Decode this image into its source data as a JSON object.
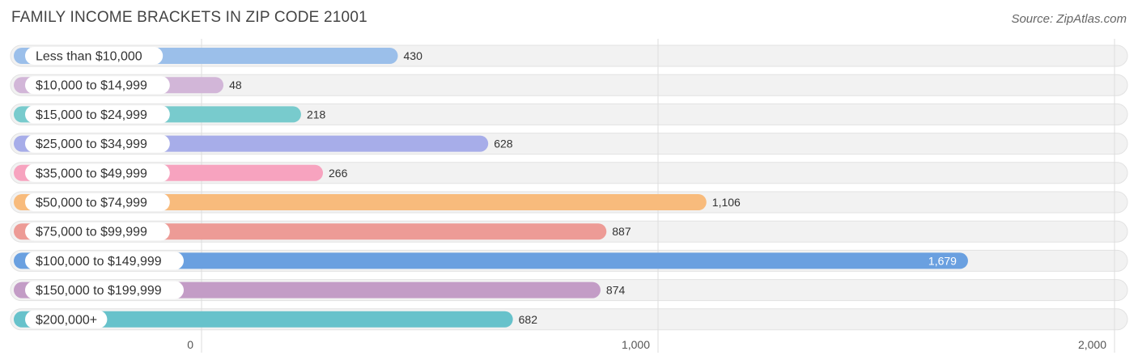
{
  "header": {
    "title": "FAMILY INCOME BRACKETS IN ZIP CODE 21001",
    "source": "Source: ZipAtlas.com"
  },
  "chart_data": {
    "type": "bar",
    "orientation": "horizontal",
    "categories": [
      "Less than $10,000",
      "$10,000 to $14,999",
      "$15,000 to $24,999",
      "$25,000 to $34,999",
      "$35,000 to $49,999",
      "$50,000 to $74,999",
      "$75,000 to $99,999",
      "$100,000 to $149,999",
      "$150,000 to $199,999",
      "$200,000+"
    ],
    "values": [
      430,
      48,
      218,
      628,
      266,
      1106,
      887,
      1679,
      874,
      682
    ],
    "value_labels": [
      "430",
      "48",
      "218",
      "628",
      "266",
      "1,106",
      "887",
      "1,679",
      "874",
      "682"
    ],
    "colors": [
      "#9bbfea",
      "#d2b6d8",
      "#78cbcd",
      "#a7ade9",
      "#f7a3bf",
      "#f8bb7c",
      "#ed9b96",
      "#6aa0e0",
      "#c39cc6",
      "#67c2cb"
    ],
    "xlim": [
      0,
      2000
    ],
    "xticks": [
      0,
      1000,
      2000
    ],
    "xtick_labels": [
      "0",
      "1,000",
      "2,000"
    ],
    "grid": true
  }
}
